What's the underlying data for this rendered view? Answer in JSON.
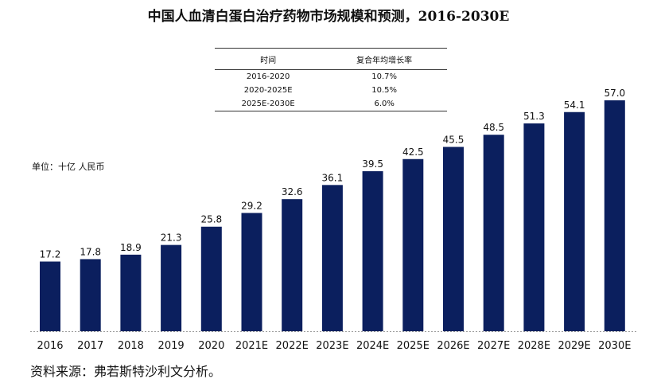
{
  "title": "中国人血清白蛋白治疗药物市场规模和预测，2016-2030E",
  "unit_label": "单位：十亿 人民币",
  "source": "资料来源：弗若斯特沙利文分析。",
  "cagr_table": {
    "headers": [
      "时间",
      "复合年均增长率"
    ],
    "rows": [
      {
        "period": "2016-2020",
        "rate": "10.7%"
      },
      {
        "period": "2020-2025E",
        "rate": "10.5%"
      },
      {
        "period": "2025E-2030E",
        "rate": "6.0%"
      }
    ]
  },
  "colors": {
    "bar": "#0b1f5e",
    "axis": "#999999"
  },
  "chart_data": {
    "type": "bar",
    "title": "中国人血清白蛋白治疗药物市场规模和预测，2016-2030E",
    "ylabel": "单位：十亿 人民币",
    "categories": [
      "2016",
      "2017",
      "2018",
      "2019",
      "2020",
      "2021E",
      "2022E",
      "2023E",
      "2024E",
      "2025E",
      "2026E",
      "2027E",
      "2028E",
      "2029E",
      "2030E"
    ],
    "values": [
      17.2,
      17.8,
      18.9,
      21.3,
      25.8,
      29.2,
      32.6,
      36.1,
      39.5,
      42.5,
      45.5,
      48.5,
      51.3,
      54.1,
      57.0
    ],
    "data_labels": [
      "17.2",
      "17.8",
      "18.9",
      "21.3",
      "25.8",
      "29.2",
      "32.6",
      "36.1",
      "39.5",
      "42.5",
      "45.5",
      "48.5",
      "51.3",
      "54.1",
      "57.0"
    ],
    "ylim": [
      0,
      57.0
    ],
    "grid": false,
    "legend": "none"
  }
}
